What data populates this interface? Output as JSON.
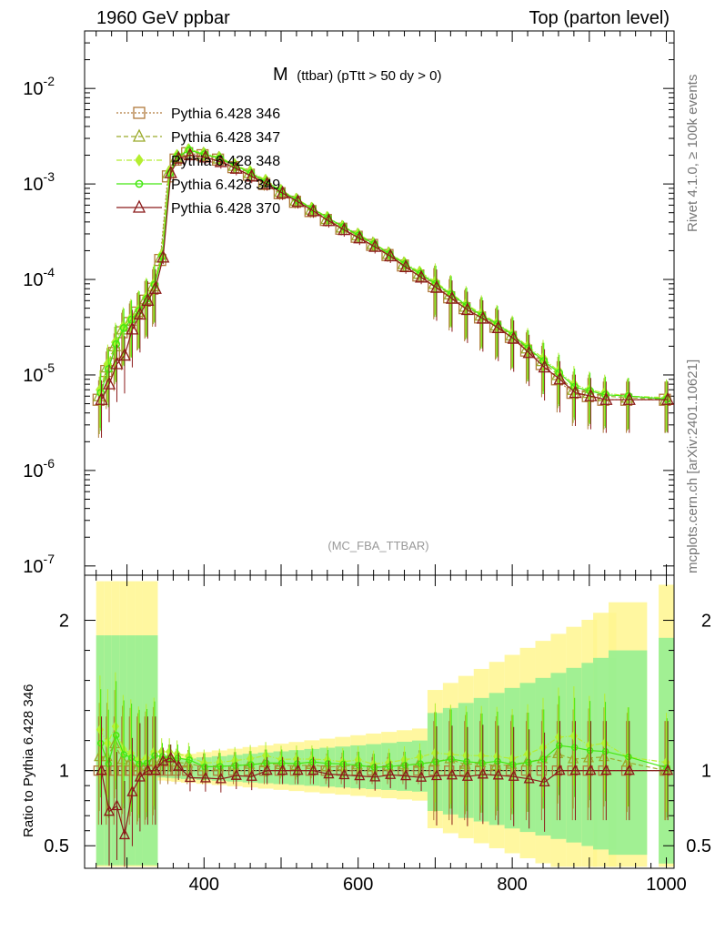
{
  "header": {
    "left": "1960 GeV ppbar",
    "right": "Top (parton level)"
  },
  "side": {
    "rivet": "Rivet 4.1.0, ≥ 100k events",
    "mcplots": "mcplots.cern.ch [arXiv:2401.10621]"
  },
  "chart_data": {
    "type": "line",
    "title_main": "M",
    "title_rest": "(ttbar) (pTtt > 50 dy > 0)",
    "watermark": "(MC_FBA_TTBAR)",
    "xlim": [
      245,
      1010
    ],
    "xticks": [
      400,
      600,
      800,
      1000
    ],
    "xtick_labels": [
      "400",
      "600",
      "800",
      "1000"
    ],
    "top": {
      "yscale": "log",
      "ylim": [
        8e-08,
        0.04
      ],
      "ytick_exponents": [
        "-2",
        "-3",
        "-4",
        "-5",
        "-6",
        "-7"
      ],
      "ytick_values": [
        0.01,
        0.001,
        0.0001,
        1e-05,
        1e-06,
        1e-07
      ]
    },
    "ratio": {
      "ylabel": "Ratio to Pythia 6.428 346",
      "ylim": [
        0.35,
        2.3
      ],
      "yticks": [
        0.5,
        1,
        2
      ],
      "ytick_labels": [
        "0.5",
        "1",
        "2"
      ]
    },
    "x": [
      265,
      275,
      285,
      295,
      305,
      315,
      325,
      335,
      345,
      355,
      365,
      380,
      400,
      420,
      440,
      460,
      480,
      500,
      520,
      540,
      560,
      580,
      600,
      620,
      640,
      660,
      680,
      700,
      720,
      740,
      760,
      780,
      800,
      820,
      840,
      860,
      880,
      900,
      920,
      950,
      1000
    ],
    "series": [
      {
        "name": "Pythia 6.428 346",
        "color": "#b07a3c",
        "marker": "square",
        "dash": "2,2",
        "values": [
          5.5e-06,
          1.1e-05,
          1.7e-05,
          2.8e-05,
          3.5e-05,
          4.5e-05,
          6e-05,
          8e-05,
          0.00016,
          0.0012,
          0.0018,
          0.0021,
          0.002,
          0.0018,
          0.0015,
          0.00125,
          0.001,
          0.0008,
          0.00065,
          0.00052,
          0.00042,
          0.00034,
          0.00028,
          0.00023,
          0.00018,
          0.00014,
          0.00011,
          8.5e-05,
          6.5e-05,
          5e-05,
          4e-05,
          3.2e-05,
          2.5e-05,
          1.8e-05,
          1.3e-05,
          9e-06,
          6.5e-06,
          6e-06,
          5.5e-06,
          5.5e-06,
          5.5e-06
        ]
      },
      {
        "name": "Pythia 6.428 347",
        "color": "#9aaa2a",
        "marker": "triangle",
        "dash": "5,3",
        "values": [
          6e-06,
          1.2e-05,
          2e-05,
          3e-05,
          3.7e-05,
          4.6e-05,
          6.2e-05,
          8.5e-05,
          0.00017,
          0.0013,
          0.0019,
          0.0022,
          0.00205,
          0.00185,
          0.00155,
          0.0013,
          0.00105,
          0.00083,
          0.00067,
          0.00054,
          0.00043,
          0.00035,
          0.00029,
          0.000235,
          0.000185,
          0.000145,
          0.000115,
          9e-05,
          7e-05,
          5.2e-05,
          4.2e-05,
          3.3e-05,
          2.6e-05,
          1.9e-05,
          1.4e-05,
          1e-05,
          7e-06,
          6.5e-06,
          6e-06,
          5.8e-06,
          5.5e-06
        ]
      },
      {
        "name": "Pythia 6.428 348",
        "color": "#b4ee30",
        "marker": "diamond",
        "dash": "6,2,1,2",
        "values": [
          7e-06,
          1.3e-05,
          2.2e-05,
          3.2e-05,
          3.9e-05,
          4.8e-05,
          6.5e-05,
          9e-05,
          0.00018,
          0.00135,
          0.002,
          0.0023,
          0.0021,
          0.0019,
          0.0016,
          0.00135,
          0.0011,
          0.00086,
          0.0007,
          0.00056,
          0.00045,
          0.00036,
          0.0003,
          0.00024,
          0.00019,
          0.00015,
          0.00012,
          9.5e-05,
          7.2e-05,
          5.5e-05,
          4.4e-05,
          3.5e-05,
          2.7e-05,
          2e-05,
          1.5e-05,
          1.1e-05,
          8e-06,
          7e-06,
          6.5e-06,
          6e-06,
          5.8e-06
        ]
      },
      {
        "name": "Pythia 6.428 349",
        "color": "#44e810",
        "marker": "circle",
        "dash": "",
        "values": [
          6.5e-06,
          1.15e-05,
          2.1e-05,
          3.1e-05,
          3.8e-05,
          4.7e-05,
          6.3e-05,
          8.8e-05,
          0.000175,
          0.0013,
          0.00195,
          0.00225,
          0.00205,
          0.00185,
          0.00155,
          0.0013,
          0.00105,
          0.00084,
          0.00068,
          0.00055,
          0.00044,
          0.000355,
          0.00029,
          0.000235,
          0.000185,
          0.000145,
          0.000115,
          9e-05,
          7e-05,
          5.3e-05,
          4.2e-05,
          3.4e-05,
          2.6e-05,
          1.9e-05,
          1.4e-05,
          1.05e-05,
          7.5e-06,
          6.8e-06,
          6.2e-06,
          6e-06,
          5.6e-06
        ]
      },
      {
        "name": "Pythia 6.428 370",
        "color": "#8b1a1a",
        "marker": "triangle",
        "dash": "",
        "values": [
          5.5e-06,
          8e-06,
          1.3e-05,
          1.6e-05,
          3e-05,
          4.3e-05,
          6e-05,
          8e-05,
          0.00017,
          0.0013,
          0.00185,
          0.002,
          0.0019,
          0.0017,
          0.00145,
          0.0012,
          0.001,
          0.0008,
          0.00065,
          0.00052,
          0.00041,
          0.00033,
          0.00027,
          0.00022,
          0.000175,
          0.000135,
          0.000105,
          8.2e-05,
          6.3e-05,
          4.8e-05,
          3.9e-05,
          3.1e-05,
          2.4e-05,
          1.7e-05,
          1.2e-05,
          9e-06,
          6.5e-06,
          6e-06,
          5.5e-06,
          5.5e-06,
          5.5e-06
        ]
      }
    ]
  }
}
